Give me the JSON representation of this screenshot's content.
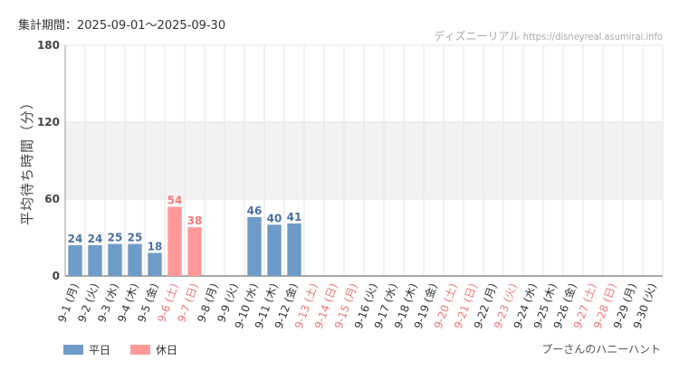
{
  "header": {
    "period": "集計期間：2025-09-01～2025-09-30",
    "source_name": "ディズニーリアル",
    "source_url": "https://disneyreal.asumirai.info"
  },
  "footer": {
    "ride_name": "プーさんのハニーハント"
  },
  "colors": {
    "weekday": "#6f9bc8",
    "holiday": "#ff9999",
    "weekday_label": "#4a6fa5",
    "holiday_label": "#f07878",
    "band": "#f2f2f2",
    "grid": "#e6e6e6"
  },
  "chart_data": {
    "type": "bar",
    "ylabel": "平均待ち時間（分）",
    "ylim": [
      0,
      180
    ],
    "yticks": [
      0,
      60,
      120,
      180
    ],
    "band": [
      60,
      120
    ],
    "grid": true,
    "legend_position": "bottom-left",
    "legend": [
      {
        "name": "平日",
        "kind": "weekday"
      },
      {
        "name": "休日",
        "kind": "holiday"
      }
    ],
    "categories": [
      "9-1 (月)",
      "9-2 (火)",
      "9-3 (水)",
      "9-4 (木)",
      "9-5 (金)",
      "9-6 (土)",
      "9-7 (日)",
      "9-8 (月)",
      "9-9 (火)",
      "9-10 (水)",
      "9-11 (木)",
      "9-12 (金)",
      "9-13 (土)",
      "9-14 (日)",
      "9-15 (月)",
      "9-16 (火)",
      "9-17 (水)",
      "9-18 (木)",
      "9-19 (金)",
      "9-20 (土)",
      "9-21 (日)",
      "9-22 (月)",
      "9-23 (火)",
      "9-24 (水)",
      "9-25 (木)",
      "9-26 (金)",
      "9-27 (土)",
      "9-28 (日)",
      "9-29 (月)",
      "9-30 (火)"
    ],
    "holiday": [
      false,
      false,
      false,
      false,
      false,
      true,
      true,
      false,
      false,
      false,
      false,
      false,
      true,
      true,
      true,
      false,
      false,
      false,
      false,
      true,
      true,
      false,
      true,
      false,
      false,
      false,
      true,
      true,
      false,
      false
    ],
    "values": [
      24,
      24,
      25,
      25,
      18,
      54,
      38,
      null,
      null,
      46,
      40,
      41,
      null,
      null,
      null,
      null,
      null,
      null,
      null,
      null,
      null,
      null,
      null,
      null,
      null,
      null,
      null,
      null,
      null,
      null
    ]
  }
}
